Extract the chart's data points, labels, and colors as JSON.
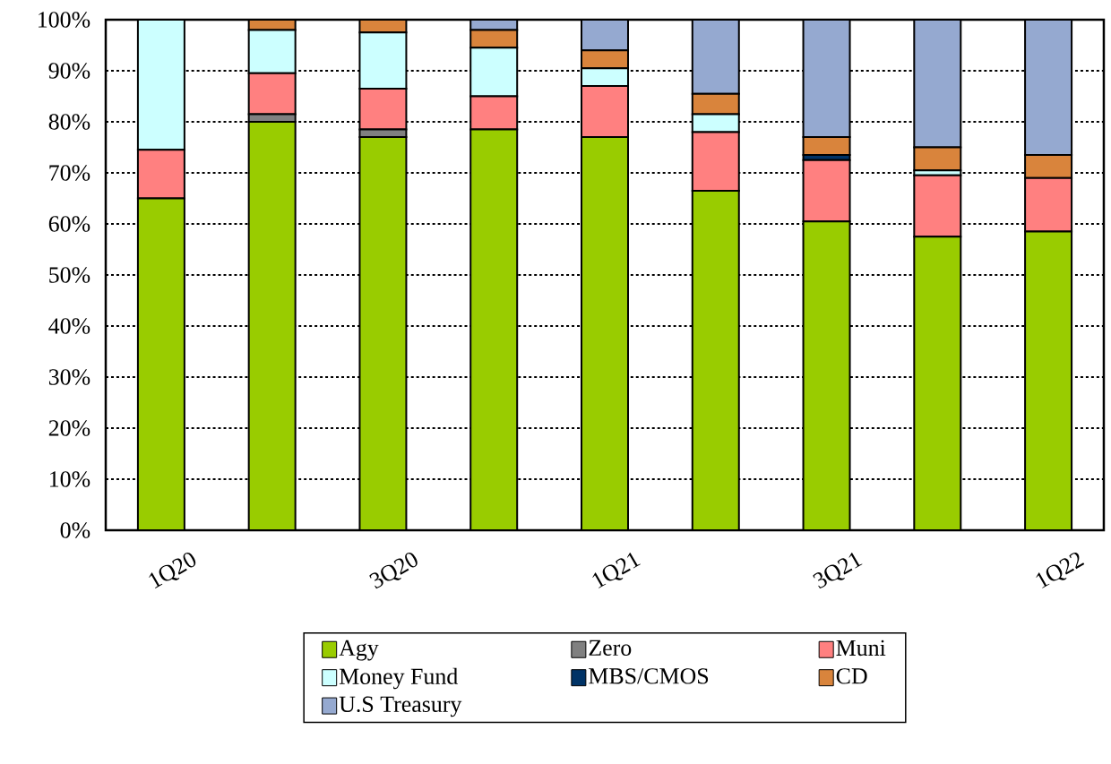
{
  "chart_data": {
    "type": "bar",
    "stacked": true,
    "categories": [
      "1Q20",
      null,
      "3Q20",
      null,
      "1Q21",
      null,
      "3Q21",
      null,
      "1Q22"
    ],
    "series": [
      {
        "name": "Agy",
        "color": "#99cc00",
        "values": [
          65,
          80,
          77,
          78.5,
          77,
          66.5,
          60.5,
          57.5,
          58.5
        ]
      },
      {
        "name": "Zero",
        "color": "#808080",
        "values": [
          null,
          1.5,
          1.5,
          null,
          null,
          null,
          null,
          null,
          null
        ]
      },
      {
        "name": "Muni",
        "color": "#ff8080",
        "values": [
          9.5,
          8,
          8,
          6.5,
          10,
          11.5,
          12,
          12,
          10.5
        ]
      },
      {
        "name": "Money Fund",
        "color": "#ccffff",
        "values": [
          25.5,
          8.5,
          11,
          9.5,
          3.5,
          3.5,
          null,
          1,
          null
        ]
      },
      {
        "name": "MBS/CMOS",
        "color": "#003366",
        "values": [
          null,
          null,
          null,
          null,
          null,
          null,
          1,
          null,
          null
        ]
      },
      {
        "name": "CD",
        "color": "#d9843c",
        "values": [
          null,
          2,
          2.5,
          3.5,
          3.5,
          4,
          3.5,
          4.5,
          4.5
        ]
      },
      {
        "name": "U.S Treasury",
        "color": "#95a9d0",
        "values": [
          null,
          null,
          null,
          2,
          6,
          14.5,
          23,
          25,
          26.5
        ]
      }
    ],
    "ylim": [
      0,
      100
    ],
    "yticks": [
      {
        "value": 0,
        "label": "0%"
      },
      {
        "value": 10,
        "label": "10%"
      },
      {
        "value": 20,
        "label": "20%"
      },
      {
        "value": 30,
        "label": "30%"
      },
      {
        "value": 40,
        "label": "40%"
      },
      {
        "value": 50,
        "label": "50%"
      },
      {
        "value": 60,
        "label": "60%"
      },
      {
        "value": 70,
        "label": "70%"
      },
      {
        "value": 80,
        "label": "80%"
      },
      {
        "value": 90,
        "label": "90%"
      },
      {
        "value": 100,
        "label": "100%"
      }
    ],
    "grid": "y",
    "legend": "bottom"
  }
}
